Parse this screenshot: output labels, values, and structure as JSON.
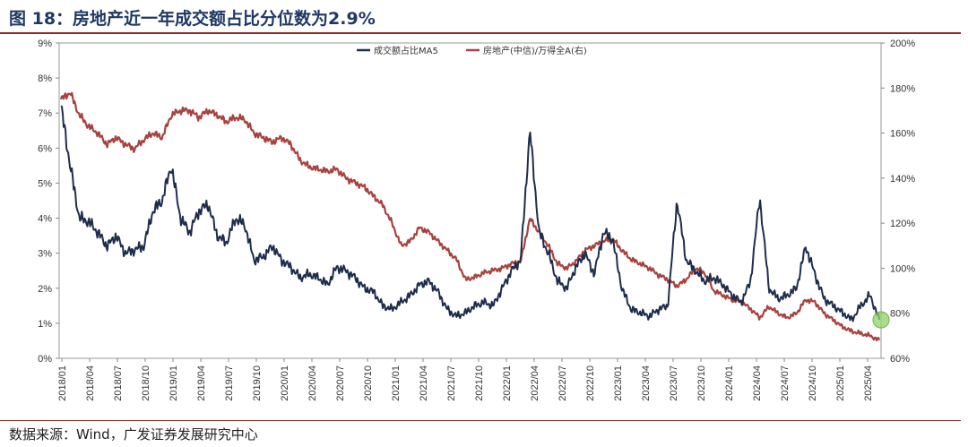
{
  "header": {
    "title": "图 18：房地产近一年成交额占比分位数为2.9%"
  },
  "footer": {
    "source": "数据来源：Wind，广发证券发展研究中心"
  },
  "colors": {
    "series1": "#1f2d4d",
    "series2": "#a8423f",
    "accent_rule": "#8c2a2a",
    "highlight": "#8ed36a"
  },
  "chart_data": {
    "type": "line",
    "title": "",
    "legend_position": "top-right",
    "grid": false,
    "x_ticks": [
      "2018/01",
      "2018/04",
      "2018/07",
      "2018/10",
      "2019/01",
      "2019/04",
      "2019/07",
      "2019/10",
      "2020/01",
      "2020/04",
      "2020/07",
      "2020/10",
      "2021/01",
      "2021/04",
      "2021/07",
      "2021/10",
      "2022/01",
      "2022/04",
      "2022/07",
      "2022/10",
      "2023/01",
      "2023/04",
      "2023/07",
      "2023/10",
      "2024/01",
      "2024/04",
      "2024/07",
      "2024/10",
      "2025/01",
      "2025/04"
    ],
    "y_left": {
      "ticks": [
        "0%",
        "1%",
        "2%",
        "3%",
        "4%",
        "5%",
        "6%",
        "7%",
        "8%",
        "9%"
      ],
      "range": [
        0,
        9
      ]
    },
    "y_right": {
      "ticks": [
        "60%",
        "80%",
        "100%",
        "120%",
        "140%",
        "160%",
        "180%",
        "200%"
      ],
      "range": [
        60,
        200
      ]
    },
    "x_labels": [
      "2018/01",
      "2018/02",
      "2018/03",
      "2018/04",
      "2018/05",
      "2018/06",
      "2018/07",
      "2018/08",
      "2018/09",
      "2018/10",
      "2018/11",
      "2018/12",
      "2019/01",
      "2019/02",
      "2019/03",
      "2019/04",
      "2019/05",
      "2019/06",
      "2019/07",
      "2019/08",
      "2019/09",
      "2019/10",
      "2019/11",
      "2019/12",
      "2020/01",
      "2020/02",
      "2020/03",
      "2020/04",
      "2020/05",
      "2020/06",
      "2020/07",
      "2020/08",
      "2020/09",
      "2020/10",
      "2020/11",
      "2020/12",
      "2021/01",
      "2021/02",
      "2021/03",
      "2021/04",
      "2021/05",
      "2021/06",
      "2021/07",
      "2021/08",
      "2021/09",
      "2021/10",
      "2021/11",
      "2021/12",
      "2022/01",
      "2022/02",
      "2022/03",
      "2022/04",
      "2022/05",
      "2022/06",
      "2022/07",
      "2022/08",
      "2022/09",
      "2022/10",
      "2022/11",
      "2022/12",
      "2023/01",
      "2023/02",
      "2023/03",
      "2023/04",
      "2023/05",
      "2023/06",
      "2023/07",
      "2023/08",
      "2023/09",
      "2023/10",
      "2023/11",
      "2023/12",
      "2024/01",
      "2024/02",
      "2024/03",
      "2024/04",
      "2024/05",
      "2024/06",
      "2024/07",
      "2024/08",
      "2024/09",
      "2024/10",
      "2024/11",
      "2024/12",
      "2025/01",
      "2025/02",
      "2025/03",
      "2025/04",
      "2025/05",
      "2025/06"
    ],
    "series": [
      {
        "name": "成交额占比MA5",
        "axis": "left",
        "values": [
          7.2,
          5.5,
          4.0,
          3.9,
          3.6,
          3.2,
          3.5,
          3.0,
          3.1,
          3.2,
          4.2,
          4.5,
          5.5,
          4.0,
          3.6,
          4.2,
          4.4,
          3.5,
          3.3,
          4.0,
          3.8,
          2.8,
          2.9,
          3.2,
          2.8,
          2.6,
          2.3,
          2.4,
          2.3,
          2.1,
          2.6,
          2.5,
          2.3,
          2.0,
          1.9,
          1.5,
          1.4,
          1.6,
          1.8,
          2.1,
          2.2,
          1.9,
          1.4,
          1.2,
          1.3,
          1.5,
          1.6,
          1.5,
          2.0,
          2.5,
          2.8,
          6.5,
          3.6,
          3.0,
          2.2,
          2.0,
          2.6,
          3.0,
          2.4,
          3.6,
          3.4,
          2.0,
          1.4,
          1.3,
          1.2,
          1.4,
          1.5,
          4.5,
          2.8,
          2.5,
          2.2,
          2.3,
          2.1,
          1.8,
          1.6,
          2.2,
          4.6,
          2.0,
          1.7,
          1.8,
          2.0,
          3.2,
          2.4,
          1.7,
          1.5,
          1.3,
          1.1,
          1.5,
          1.8,
          1.1
        ]
      },
      {
        "name": "房地产(中信)/万得全A(右)",
        "axis": "right",
        "values": [
          175,
          178,
          168,
          163,
          160,
          155,
          158,
          155,
          153,
          157,
          160,
          158,
          168,
          170,
          170,
          167,
          170,
          168,
          165,
          167,
          166,
          160,
          158,
          156,
          158,
          155,
          148,
          145,
          144,
          143,
          144,
          140,
          138,
          136,
          132,
          128,
          120,
          110,
          112,
          118,
          116,
          112,
          108,
          104,
          95,
          96,
          98,
          99,
          100,
          102,
          103,
          122,
          116,
          110,
          102,
          100,
          103,
          108,
          110,
          112,
          113,
          108,
          104,
          102,
          100,
          97,
          95,
          92,
          95,
          100,
          98,
          90,
          88,
          86,
          85,
          82,
          78,
          83,
          80,
          78,
          80,
          86,
          85,
          80,
          77,
          74,
          72,
          71,
          70,
          68
        ]
      }
    ]
  }
}
